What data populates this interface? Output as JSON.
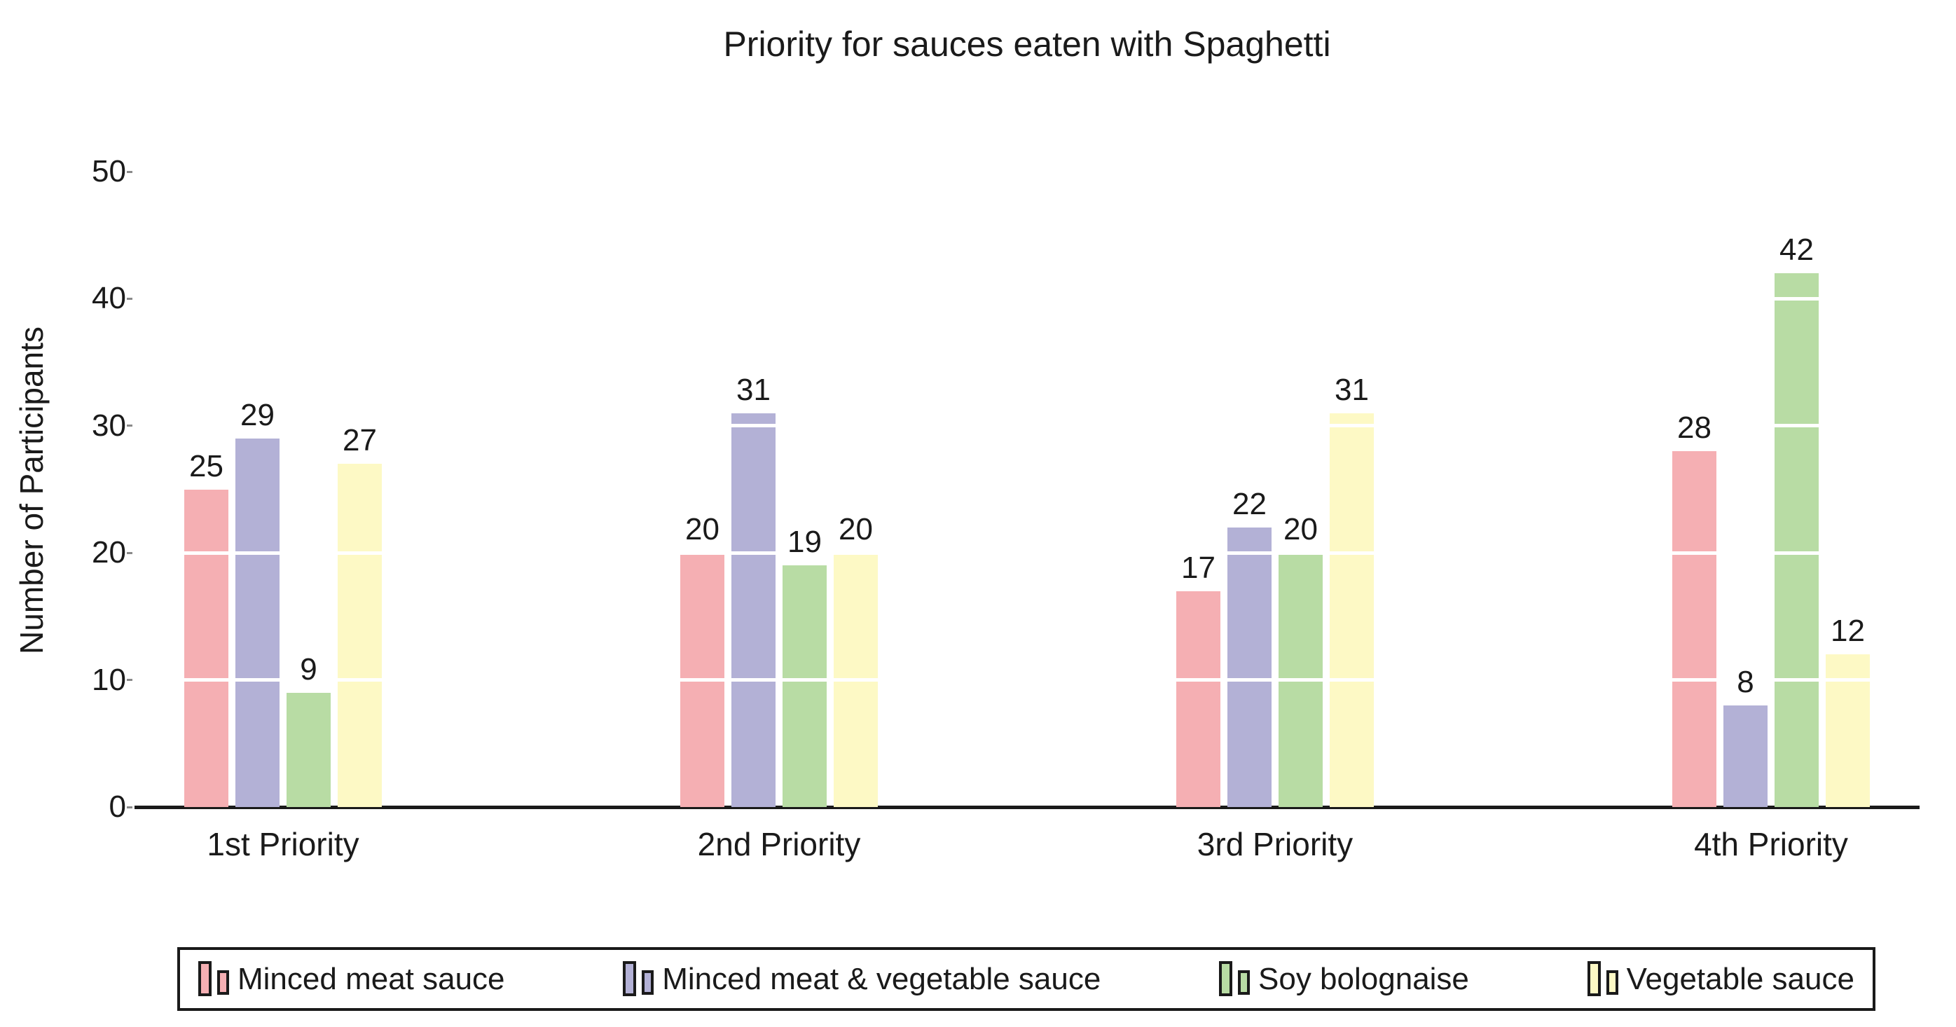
{
  "chart_data": {
    "type": "bar",
    "title": "Priority for sauces eaten with Spaghetti",
    "xlabel": "",
    "ylabel": "Number of Participants",
    "categories": [
      "1st Priority",
      "2nd Priority",
      "3rd Priority",
      "4th Priority"
    ],
    "series": [
      {
        "name": "Minced meat sauce",
        "color": "#F5AFB3",
        "values": [
          25,
          20,
          17,
          28
        ]
      },
      {
        "name": "Minced meat & vegetable sauce",
        "color": "#B3B1D6",
        "values": [
          29,
          31,
          22,
          8
        ]
      },
      {
        "name": "Soy bolognaise",
        "color": "#B8DCA4",
        "values": [
          9,
          19,
          20,
          42
        ]
      },
      {
        "name": "Vegetable sauce",
        "color": "#FDF9C5",
        "values": [
          27,
          20,
          31,
          12
        ]
      }
    ],
    "yticks": [
      0,
      10,
      20,
      30,
      40,
      50
    ],
    "ylim": [
      0,
      55
    ],
    "bar_value_labels": true,
    "grid": "white horizontal lines at each y tick drawn over the bars",
    "legend_position": "bottom",
    "axis_line": "x-axis only, black",
    "colors": {
      "text": "#1a1a1a",
      "axis_line": "#1a1a1a",
      "gridline": "#ffffff",
      "background": "#ffffff",
      "legend_border": "#1a1a1a"
    }
  }
}
